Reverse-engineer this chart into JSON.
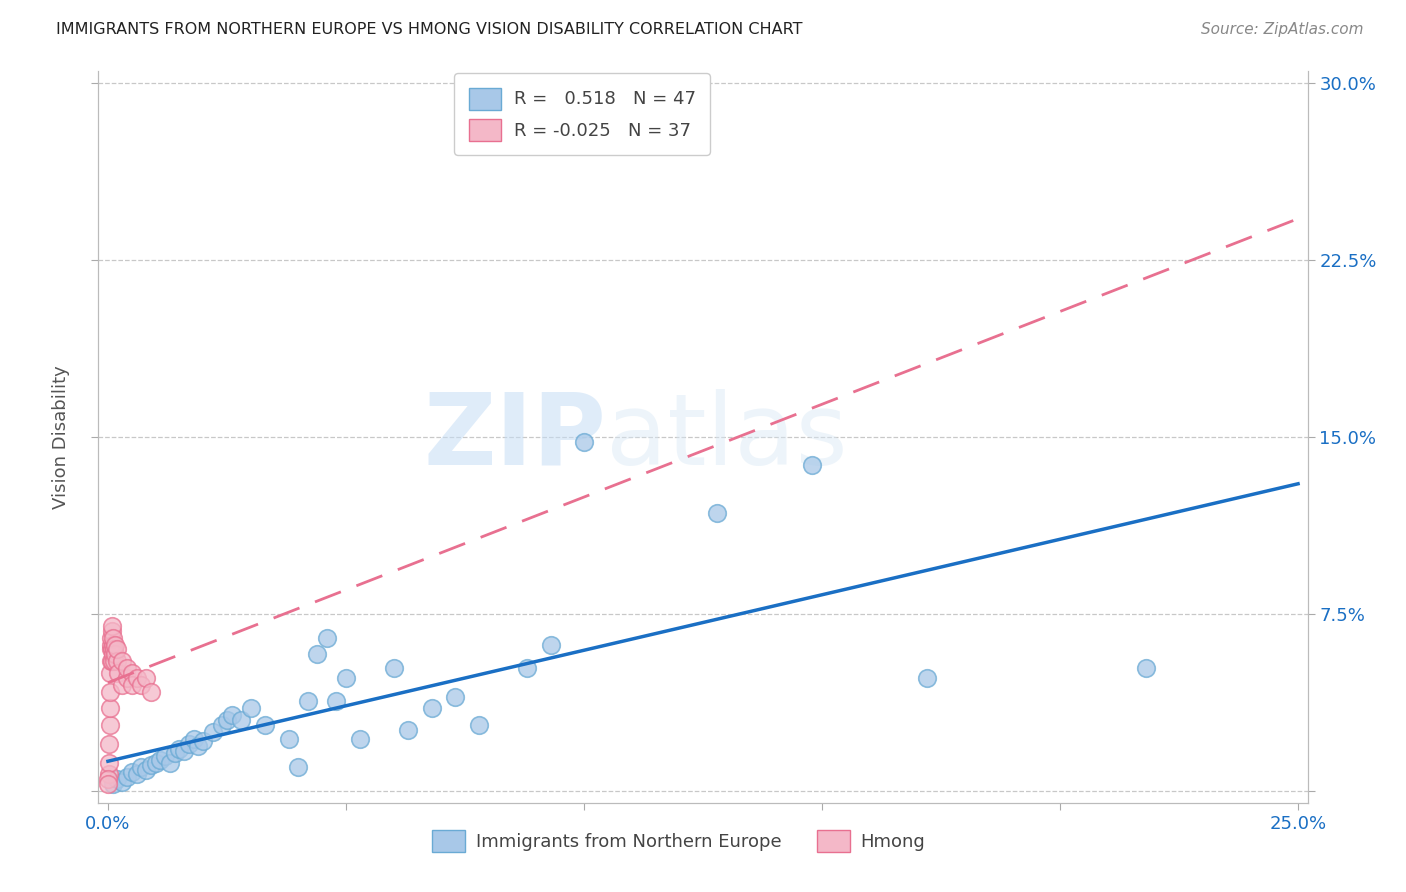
{
  "title": "IMMIGRANTS FROM NORTHERN EUROPE VS HMONG VISION DISABILITY CORRELATION CHART",
  "source": "Source: ZipAtlas.com",
  "xlabel_blue": "Immigrants from Northern Europe",
  "xlabel_pink": "Hmong",
  "ylabel": "Vision Disability",
  "xlim": [
    -0.002,
    0.252
  ],
  "ylim": [
    -0.005,
    0.305
  ],
  "xtick_positions": [
    0.0,
    0.05,
    0.1,
    0.15,
    0.2,
    0.25
  ],
  "xtick_labels": [
    "0.0%",
    "",
    "",
    "",
    "",
    "25.0%"
  ],
  "ytick_positions": [
    0.0,
    0.075,
    0.15,
    0.225,
    0.3
  ],
  "ytick_labels_right": [
    "",
    "7.5%",
    "15.0%",
    "22.5%",
    "30.0%"
  ],
  "r_blue": 0.518,
  "n_blue": 47,
  "r_pink": -0.025,
  "n_pink": 37,
  "blue_scatter_color": "#a8c8e8",
  "blue_edge_color": "#6aaad4",
  "pink_scatter_color": "#f4b8c8",
  "pink_edge_color": "#e87090",
  "blue_line_color": "#1a6fc4",
  "pink_line_color": "#e87090",
  "legend_patch_blue": "#a8c8e8",
  "legend_patch_pink": "#f4b8c8",
  "blue_scatter": [
    [
      0.001,
      0.003
    ],
    [
      0.002,
      0.005
    ],
    [
      0.003,
      0.004
    ],
    [
      0.004,
      0.006
    ],
    [
      0.005,
      0.008
    ],
    [
      0.006,
      0.007
    ],
    [
      0.007,
      0.01
    ],
    [
      0.008,
      0.009
    ],
    [
      0.009,
      0.011
    ],
    [
      0.01,
      0.012
    ],
    [
      0.011,
      0.013
    ],
    [
      0.012,
      0.015
    ],
    [
      0.013,
      0.012
    ],
    [
      0.014,
      0.016
    ],
    [
      0.015,
      0.018
    ],
    [
      0.016,
      0.017
    ],
    [
      0.017,
      0.02
    ],
    [
      0.018,
      0.022
    ],
    [
      0.019,
      0.019
    ],
    [
      0.02,
      0.021
    ],
    [
      0.022,
      0.025
    ],
    [
      0.024,
      0.028
    ],
    [
      0.025,
      0.03
    ],
    [
      0.026,
      0.032
    ],
    [
      0.028,
      0.03
    ],
    [
      0.03,
      0.035
    ],
    [
      0.033,
      0.028
    ],
    [
      0.038,
      0.022
    ],
    [
      0.04,
      0.01
    ],
    [
      0.042,
      0.038
    ],
    [
      0.044,
      0.058
    ],
    [
      0.046,
      0.065
    ],
    [
      0.048,
      0.038
    ],
    [
      0.05,
      0.048
    ],
    [
      0.053,
      0.022
    ],
    [
      0.06,
      0.052
    ],
    [
      0.063,
      0.026
    ],
    [
      0.068,
      0.035
    ],
    [
      0.073,
      0.04
    ],
    [
      0.078,
      0.028
    ],
    [
      0.088,
      0.052
    ],
    [
      0.093,
      0.062
    ],
    [
      0.1,
      0.148
    ],
    [
      0.128,
      0.118
    ],
    [
      0.148,
      0.138
    ],
    [
      0.172,
      0.048
    ],
    [
      0.218,
      0.052
    ]
  ],
  "pink_scatter": [
    [
      0.0002,
      0.007
    ],
    [
      0.0003,
      0.012
    ],
    [
      0.0003,
      0.02
    ],
    [
      0.0004,
      0.028
    ],
    [
      0.0004,
      0.035
    ],
    [
      0.0005,
      0.042
    ],
    [
      0.0005,
      0.05
    ],
    [
      0.0006,
      0.055
    ],
    [
      0.0006,
      0.06
    ],
    [
      0.0007,
      0.062
    ],
    [
      0.0007,
      0.065
    ],
    [
      0.0008,
      0.068
    ],
    [
      0.0008,
      0.07
    ],
    [
      0.0009,
      0.055
    ],
    [
      0.0009,
      0.06
    ],
    [
      0.001,
      0.058
    ],
    [
      0.001,
      0.062
    ],
    [
      0.001,
      0.065
    ],
    [
      0.0012,
      0.055
    ],
    [
      0.0012,
      0.06
    ],
    [
      0.0014,
      0.058
    ],
    [
      0.0015,
      0.062
    ],
    [
      0.002,
      0.055
    ],
    [
      0.002,
      0.06
    ],
    [
      0.0022,
      0.05
    ],
    [
      0.003,
      0.045
    ],
    [
      0.003,
      0.055
    ],
    [
      0.004,
      0.048
    ],
    [
      0.004,
      0.052
    ],
    [
      0.005,
      0.05
    ],
    [
      0.005,
      0.045
    ],
    [
      0.006,
      0.048
    ],
    [
      0.007,
      0.045
    ],
    [
      0.008,
      0.048
    ],
    [
      0.009,
      0.042
    ],
    [
      0.0001,
      0.005
    ],
    [
      0.0001,
      0.003
    ]
  ],
  "watermark_zip": "ZIP",
  "watermark_atlas": "atlas",
  "background_color": "#ffffff",
  "grid_color": "#c8c8c8"
}
